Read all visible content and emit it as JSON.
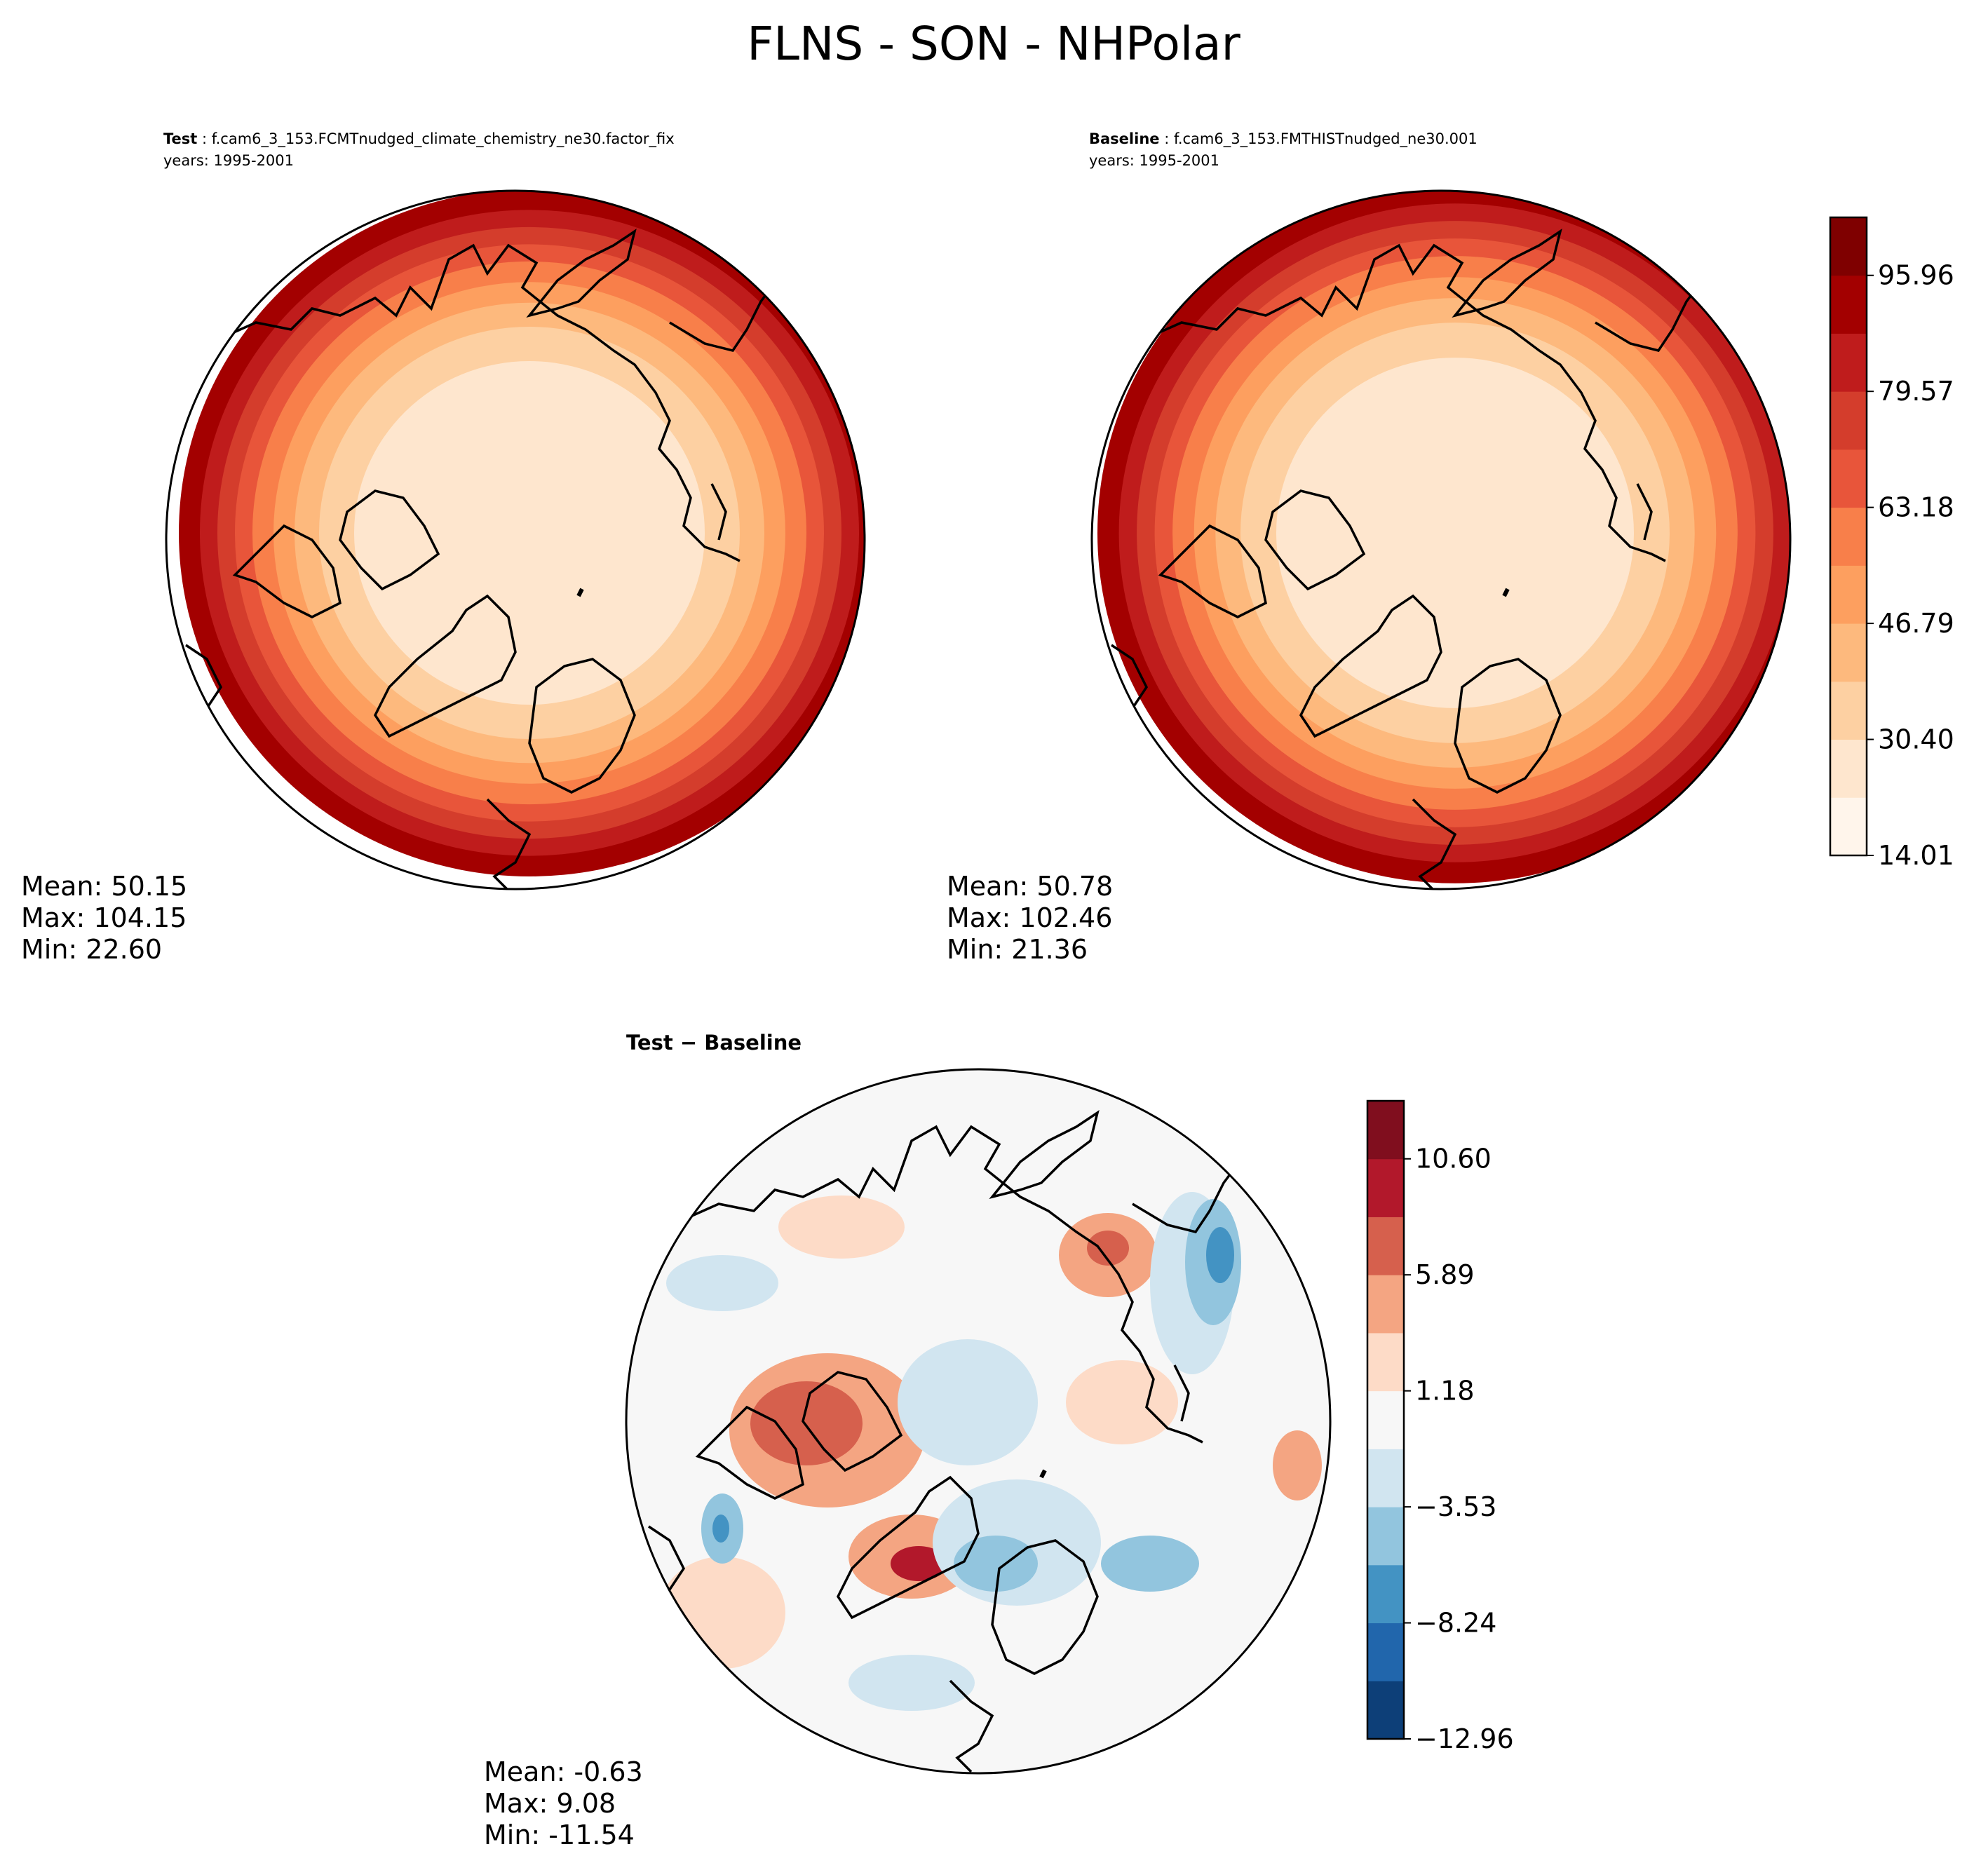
{
  "title": "FLNS - SON - NHPolar",
  "panels": {
    "test": {
      "label": "Test",
      "case": "f.cam6_3_153.FCMTnudged_climate_chemistry_ne30.factor_fix",
      "years": "years: 1995-2001",
      "stats": {
        "mean": "Mean: 50.15",
        "max": "Max: 104.15",
        "min": "Min: 22.60"
      }
    },
    "baseline": {
      "label": "Baseline",
      "case": "f.cam6_3_153.FMTHISTnudged_ne30.001",
      "years": "years: 1995-2001",
      "stats": {
        "mean": "Mean: 50.78",
        "max": "Max: 102.46",
        "min": "Min: 21.36"
      }
    },
    "diff": {
      "title": "Test − Baseline",
      "stats": {
        "mean": "Mean: -0.63",
        "max": "Max:  9.08",
        "min": "Min: -11.54"
      }
    }
  },
  "colorbars": {
    "main": {
      "ticks": [
        "14.01",
        "30.40",
        "46.79",
        "63.18",
        "79.57",
        "95.96"
      ],
      "colors": [
        "#fff5eb",
        "#fee6ce",
        "#fdd0a2",
        "#fdb97d",
        "#fd9f5f",
        "#f87f4a",
        "#e8553a",
        "#d43d2c",
        "#bf1c1c",
        "#a30000",
        "#7f0000"
      ]
    },
    "diff": {
      "ticks": [
        "−12.96",
        "−8.24",
        "−3.53",
        "1.18",
        "5.89",
        "10.60"
      ],
      "colors": [
        "#0d3f78",
        "#2166ac",
        "#4393c3",
        "#92c5de",
        "#d1e5f0",
        "#f7f7f7",
        "#fddbc7",
        "#f4a582",
        "#d6604d",
        "#b2182b",
        "#800e1e"
      ]
    }
  },
  "map_colors": {
    "main": [
      "#fee6ce",
      "#fdd0a2",
      "#fdb97d",
      "#fd9f5f",
      "#f87f4a",
      "#e8553a",
      "#d43d2c",
      "#bf1c1c",
      "#a30000"
    ],
    "diff_base": "#f7f7f7"
  }
}
